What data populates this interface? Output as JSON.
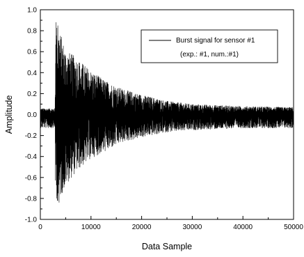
{
  "chart_data": {
    "type": "line",
    "title": "",
    "xlabel": "Data Sample",
    "ylabel": "Amplitude",
    "xlim": [
      0,
      50000
    ],
    "ylim": [
      -1.0,
      1.0
    ],
    "x_ticks": [
      "0",
      "10000",
      "20000",
      "30000",
      "40000",
      "50000"
    ],
    "y_ticks": [
      "1.0",
      "0.8",
      "0.6",
      "0.4",
      "0.2",
      "0.0",
      "-0.2",
      "-0.4",
      "-0.6",
      "-0.8",
      "-1.0"
    ],
    "grid": false,
    "legend": {
      "placement": "top-right",
      "entries": [
        "Burst signal for sensor #1"
      ],
      "note": "(exp.: #1, num.:#1)"
    },
    "series": [
      {
        "name": "Burst signal for sensor #1",
        "color": "#000000",
        "style": "dense oscillating burst",
        "baseline_noise_envelope": 0.06,
        "burst_onset": 3000,
        "envelope": {
          "x": [
            0,
            2900,
            3000,
            3500,
            5000,
            7000,
            10000,
            13000,
            16000,
            20000,
            25000,
            30000,
            40000,
            50000
          ],
          "upper": [
            0.06,
            0.06,
            0.88,
            0.85,
            0.62,
            0.55,
            0.42,
            0.32,
            0.25,
            0.19,
            0.13,
            0.1,
            0.08,
            0.07
          ],
          "lower": [
            -0.13,
            -0.13,
            -0.8,
            -0.84,
            -0.68,
            -0.55,
            -0.42,
            -0.35,
            -0.27,
            -0.22,
            -0.17,
            -0.15,
            -0.13,
            -0.13
          ]
        }
      }
    ]
  }
}
